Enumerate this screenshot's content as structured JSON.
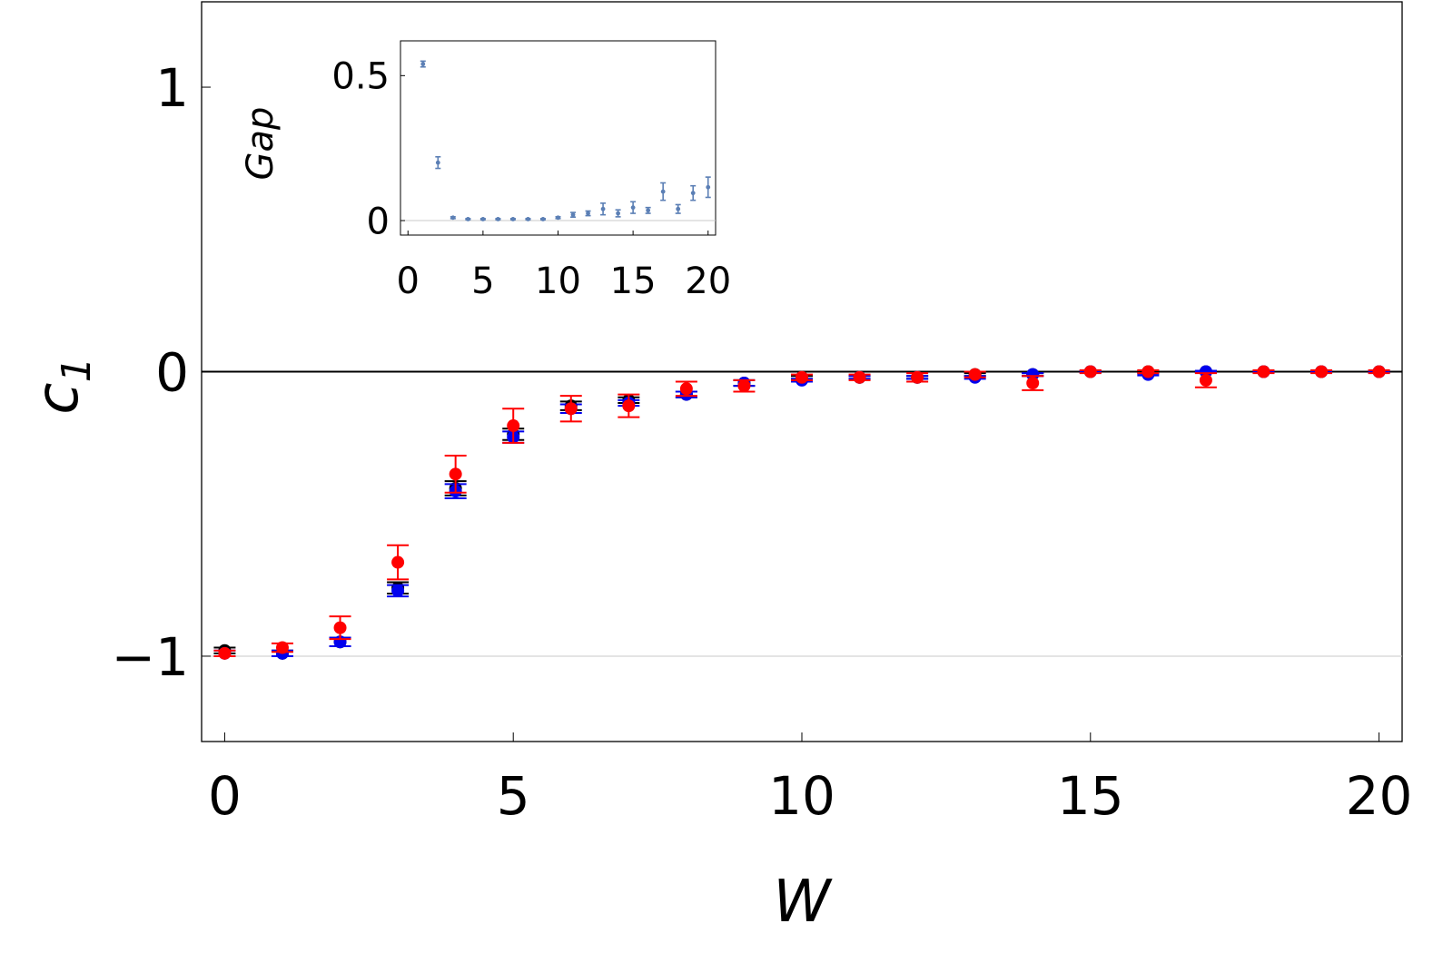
{
  "chart_data": [
    {
      "type": "scatter",
      "title": "",
      "xlabel": "W",
      "ylabel": "c1",
      "ylabel_main": "c",
      "ylabel_sub": "1",
      "xlim": [
        -0.4,
        20.4
      ],
      "ylim": [
        -1.3,
        1.3
      ],
      "x_ticks": [
        0,
        5,
        10,
        15,
        20
      ],
      "x_tick_labels": [
        "0",
        "5",
        "10",
        "15",
        "20"
      ],
      "y_ticks": [
        -1,
        0,
        1
      ],
      "y_tick_labels": [
        "−1",
        "0",
        "1"
      ],
      "grid": false,
      "reference_lines": [
        0,
        -1
      ],
      "x": [
        0,
        1,
        2,
        3,
        4,
        5,
        6,
        7,
        8,
        9,
        10,
        11,
        12,
        13,
        14,
        15,
        16,
        17,
        18,
        19,
        20
      ],
      "series": [
        {
          "color": "#000000",
          "values": [
            -0.98,
            -0.99,
            -0.95,
            -0.76,
            -0.41,
            -0.22,
            -0.12,
            -0.1,
            -0.08,
            -0.04,
            -0.02,
            -0.02,
            -0.02,
            -0.01,
            -0.01,
            0.0,
            0.0,
            0.0,
            0.0,
            0.0,
            0.0
          ],
          "errors": [
            0.01,
            0.01,
            0.015,
            0.02,
            0.025,
            0.02,
            0.015,
            0.01,
            0.01,
            0.01,
            0.005,
            0.005,
            0.005,
            0.005,
            0.005,
            0.003,
            0.003,
            0.003,
            0.003,
            0.003,
            0.003
          ]
        },
        {
          "color": "#0000ee",
          "values": [
            -0.99,
            -0.99,
            -0.95,
            -0.77,
            -0.42,
            -0.23,
            -0.13,
            -0.11,
            -0.08,
            -0.04,
            -0.03,
            -0.02,
            -0.02,
            -0.02,
            -0.01,
            0.0,
            -0.01,
            0.0,
            0.0,
            0.0,
            0.0
          ],
          "errors": [
            0.01,
            0.01,
            0.015,
            0.02,
            0.025,
            0.02,
            0.015,
            0.01,
            0.01,
            0.01,
            0.005,
            0.005,
            0.005,
            0.005,
            0.005,
            0.003,
            0.003,
            0.003,
            0.003,
            0.003,
            0.003
          ]
        },
        {
          "color": "#ff0000",
          "values": [
            -0.99,
            -0.97,
            -0.9,
            -0.67,
            -0.36,
            -0.19,
            -0.13,
            -0.12,
            -0.06,
            -0.05,
            -0.02,
            -0.02,
            -0.02,
            -0.01,
            -0.04,
            0.0,
            0.0,
            -0.03,
            0.0,
            0.0,
            0.0
          ],
          "errors": [
            0.01,
            0.015,
            0.04,
            0.06,
            0.065,
            0.06,
            0.045,
            0.04,
            0.025,
            0.02,
            0.01,
            0.01,
            0.015,
            0.01,
            0.025,
            0.005,
            0.005,
            0.025,
            0.005,
            0.005,
            0.005
          ]
        }
      ]
    },
    {
      "type": "scatter",
      "title": "",
      "xlabel": "",
      "ylabel": "Gap",
      "xlim": [
        -0.5,
        20.5
      ],
      "ylim": [
        -0.05,
        0.62
      ],
      "x_ticks": [
        0,
        5,
        10,
        15,
        20
      ],
      "x_tick_labels": [
        "0",
        "5",
        "10",
        "15",
        "20"
      ],
      "y_ticks": [
        0,
        0.5
      ],
      "y_tick_labels": [
        "0",
        "0.5"
      ],
      "grid": false,
      "reference_lines": [
        0
      ],
      "x": [
        1,
        2,
        3,
        4,
        5,
        6,
        7,
        8,
        9,
        10,
        11,
        12,
        13,
        14,
        15,
        16,
        17,
        18,
        19,
        20
      ],
      "series": [
        {
          "color": "#5b7fb5",
          "values": [
            0.54,
            0.2,
            0.01,
            0.005,
            0.005,
            0.005,
            0.005,
            0.005,
            0.005,
            0.01,
            0.02,
            0.025,
            0.04,
            0.025,
            0.045,
            0.035,
            0.1,
            0.04,
            0.095,
            0.115
          ],
          "errors": [
            0.01,
            0.02,
            0.003,
            0.002,
            0.002,
            0.002,
            0.002,
            0.002,
            0.002,
            0.003,
            0.008,
            0.008,
            0.02,
            0.012,
            0.02,
            0.01,
            0.03,
            0.015,
            0.025,
            0.035
          ]
        }
      ]
    }
  ]
}
